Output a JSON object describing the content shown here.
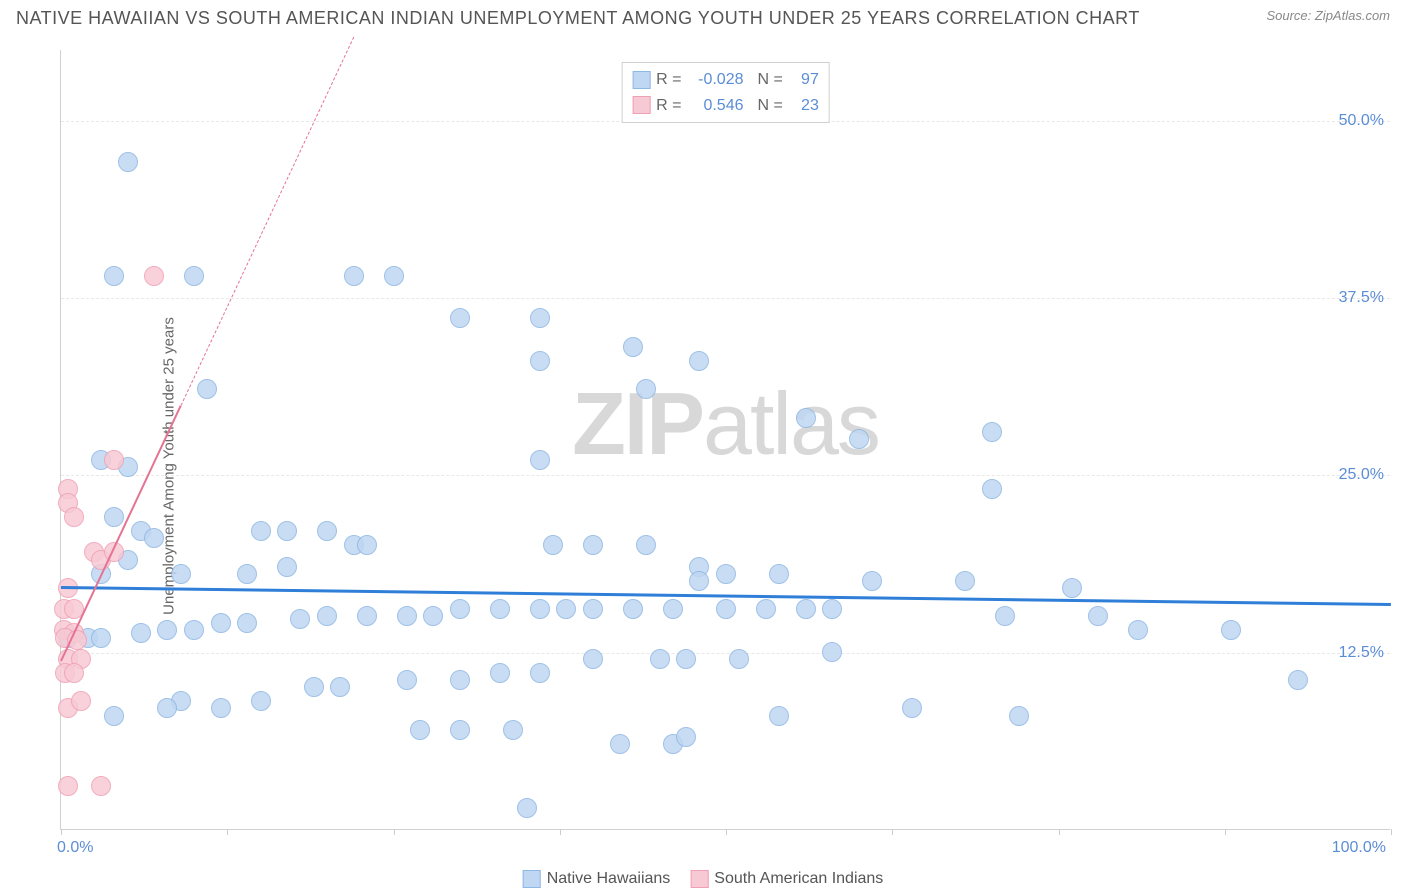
{
  "title": "NATIVE HAWAIIAN VS SOUTH AMERICAN INDIAN UNEMPLOYMENT AMONG YOUTH UNDER 25 YEARS CORRELATION CHART",
  "source": "Source: ZipAtlas.com",
  "watermark_bold": "ZIP",
  "watermark_rest": "atlas",
  "y_axis_label": "Unemployment Among Youth under 25 years",
  "chart": {
    "type": "scatter",
    "xlim": [
      0,
      100
    ],
    "ylim": [
      0,
      55
    ],
    "x_ticks": [
      0,
      12.5,
      25,
      37.5,
      50,
      62.5,
      75,
      87.5,
      100
    ],
    "x_tick_labels_shown": {
      "0": "0.0%",
      "100": "100.0%"
    },
    "y_ticks": [
      12.5,
      25,
      37.5,
      50
    ],
    "y_tick_labels": {
      "12.5": "12.5%",
      "25": "25.0%",
      "37.5": "37.5%",
      "50": "50.0%"
    },
    "background_color": "#ffffff",
    "grid_color": "#e8e8e8",
    "axis_color": "#d0d0d0",
    "tick_label_color": "#5b8dd6",
    "marker_radius": 10,
    "series": [
      {
        "key": "native_hawaiians",
        "label": "Native Hawaiians",
        "fill": "#bfd7f2",
        "stroke": "#8fb7e3",
        "R": "-0.028",
        "N": "97",
        "regression": {
          "x1": 0,
          "y1": 17.2,
          "x2": 100,
          "y2": 16.0,
          "color": "#2f7ed8",
          "width": 3,
          "dashed_extension": false
        },
        "points": [
          [
            5,
            47
          ],
          [
            4,
            39
          ],
          [
            10,
            39
          ],
          [
            22,
            39
          ],
          [
            25,
            39
          ],
          [
            30,
            36
          ],
          [
            36,
            36
          ],
          [
            43,
            34
          ],
          [
            36,
            33
          ],
          [
            48,
            33
          ],
          [
            44,
            31
          ],
          [
            11,
            31
          ],
          [
            56,
            29
          ],
          [
            70,
            28
          ],
          [
            60,
            27.5
          ],
          [
            3,
            26
          ],
          [
            5,
            25.5
          ],
          [
            70,
            24
          ],
          [
            36,
            26
          ],
          [
            4,
            22
          ],
          [
            6,
            21
          ],
          [
            7,
            20.5
          ],
          [
            15,
            21
          ],
          [
            17,
            21
          ],
          [
            20,
            21
          ],
          [
            22,
            20
          ],
          [
            23,
            20
          ],
          [
            17,
            18.5
          ],
          [
            5,
            19
          ],
          [
            3,
            18
          ],
          [
            9,
            18
          ],
          [
            14,
            18
          ],
          [
            37,
            20
          ],
          [
            40,
            20
          ],
          [
            44,
            20
          ],
          [
            48,
            18.5
          ],
          [
            48,
            17.5
          ],
          [
            50,
            18
          ],
          [
            54,
            18
          ],
          [
            61,
            17.5
          ],
          [
            68,
            17.5
          ],
          [
            76,
            17
          ],
          [
            78,
            15
          ],
          [
            71,
            15
          ],
          [
            81,
            14
          ],
          [
            88,
            14
          ],
          [
            93,
            10.5
          ],
          [
            72,
            8
          ],
          [
            64,
            8.5
          ],
          [
            54,
            8
          ],
          [
            47,
            12
          ],
          [
            45,
            12
          ],
          [
            40,
            12
          ],
          [
            36,
            11
          ],
          [
            33,
            11
          ],
          [
            30,
            10.5
          ],
          [
            26,
            10.5
          ],
          [
            21,
            10
          ],
          [
            19,
            10
          ],
          [
            15,
            9
          ],
          [
            12,
            8.5
          ],
          [
            9,
            9
          ],
          [
            8,
            8.5
          ],
          [
            4,
            8
          ],
          [
            2,
            13.5
          ],
          [
            3,
            13.5
          ],
          [
            0.5,
            13.5
          ],
          [
            6,
            13.8
          ],
          [
            8,
            14
          ],
          [
            10,
            14
          ],
          [
            12,
            14.5
          ],
          [
            14,
            14.5
          ],
          [
            18,
            14.8
          ],
          [
            20,
            15
          ],
          [
            23,
            15
          ],
          [
            26,
            15
          ],
          [
            28,
            15
          ],
          [
            30,
            15.5
          ],
          [
            33,
            15.5
          ],
          [
            36,
            15.5
          ],
          [
            38,
            15.5
          ],
          [
            40,
            15.5
          ],
          [
            43,
            15.5
          ],
          [
            46,
            15.5
          ],
          [
            50,
            15.5
          ],
          [
            53,
            15.5
          ],
          [
            56,
            15.5
          ],
          [
            58,
            15.5
          ],
          [
            30,
            7
          ],
          [
            34,
            7
          ],
          [
            27,
            7
          ],
          [
            42,
            6
          ],
          [
            46,
            6
          ],
          [
            47,
            6.5
          ],
          [
            51,
            12
          ],
          [
            58,
            12.5
          ],
          [
            35,
            1.5
          ]
        ]
      },
      {
        "key": "south_american_indians",
        "label": "South American Indians",
        "fill": "#f7c9d4",
        "stroke": "#efa0b4",
        "R": "0.546",
        "N": "23",
        "regression": {
          "x1": 0,
          "y1": 12,
          "x2": 9,
          "y2": 30,
          "color": "#e57393",
          "width": 2.5,
          "dashed_extension": true,
          "dash_x2": 22,
          "dash_y2": 56
        },
        "points": [
          [
            7,
            39
          ],
          [
            0.5,
            24
          ],
          [
            4,
            26
          ],
          [
            0.5,
            23
          ],
          [
            1,
            22
          ],
          [
            2.5,
            19.5
          ],
          [
            3,
            19
          ],
          [
            4,
            19.5
          ],
          [
            0.5,
            17
          ],
          [
            0.2,
            15.5
          ],
          [
            1,
            15.5
          ],
          [
            0.2,
            14
          ],
          [
            1,
            13.8
          ],
          [
            0.3,
            13.5
          ],
          [
            1.2,
            13.3
          ],
          [
            0.5,
            12
          ],
          [
            1.5,
            12
          ],
          [
            0.3,
            11
          ],
          [
            1,
            11
          ],
          [
            0.5,
            8.5
          ],
          [
            1.5,
            9
          ],
          [
            0.5,
            3
          ],
          [
            3,
            3
          ]
        ]
      }
    ]
  },
  "stats_box": {
    "r_label": "R =",
    "n_label": "N ="
  },
  "legend_labels": {
    "native": "Native Hawaiians",
    "south": "South American Indians"
  }
}
